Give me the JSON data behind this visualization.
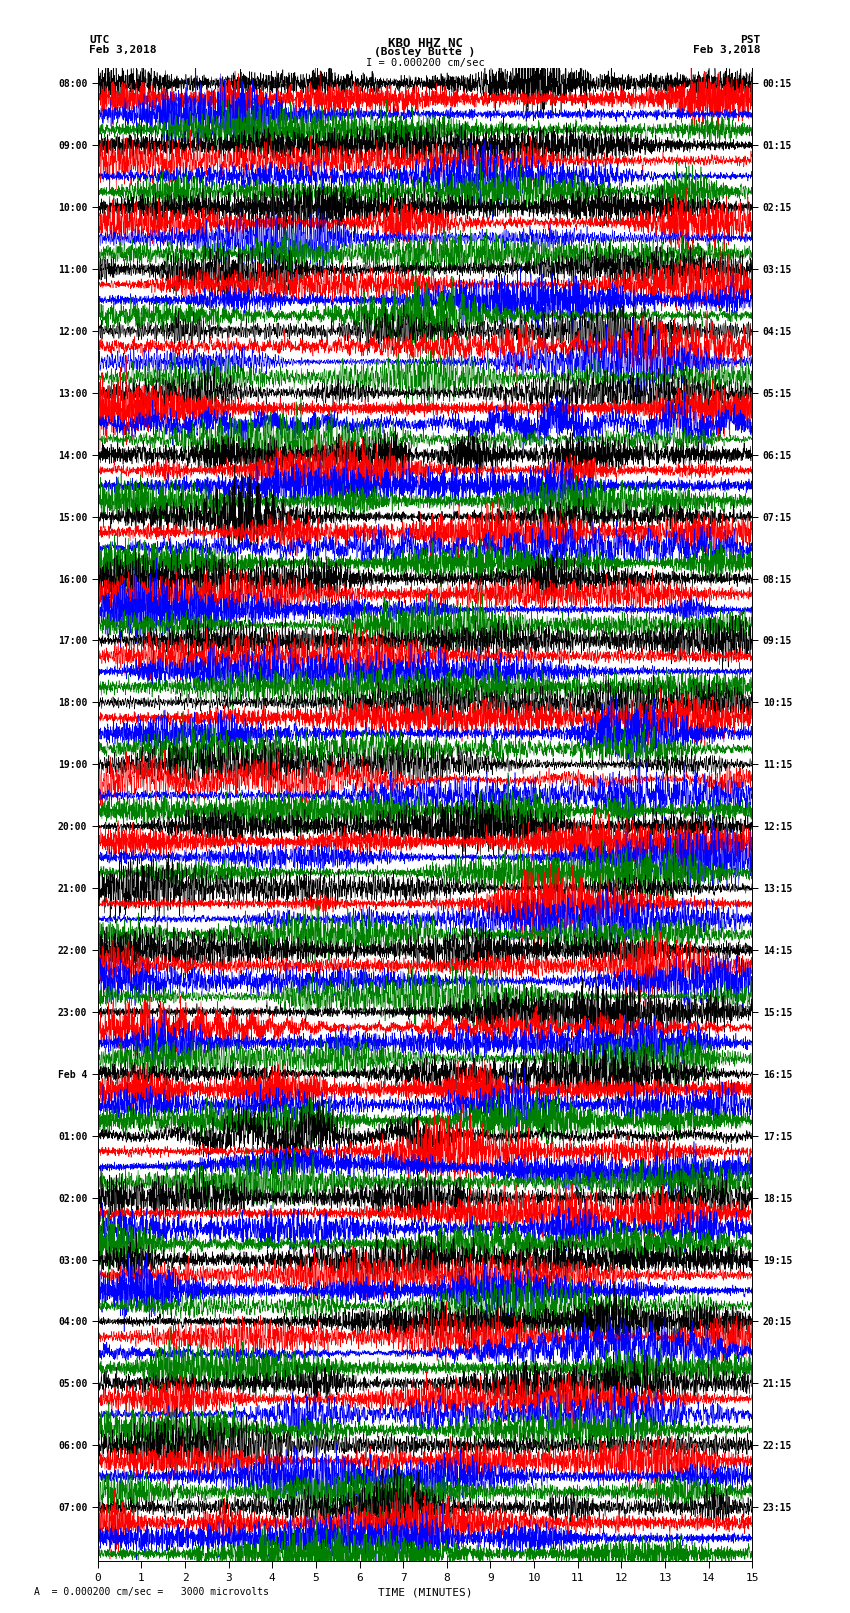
{
  "title_line1": "KBO HHZ NC",
  "title_line2": "(Bosley Butte )",
  "scale_label": "I = 0.000200 cm/sec",
  "bottom_label": "A  = 0.000200 cm/sec =   3000 microvolts",
  "left_header": "UTC",
  "left_date": "Feb 3,2018",
  "right_header": "PST",
  "right_date": "Feb 3,2018",
  "xlabel": "TIME (MINUTES)",
  "time_min": 0,
  "time_max": 15,
  "xticks": [
    0,
    1,
    2,
    3,
    4,
    5,
    6,
    7,
    8,
    9,
    10,
    11,
    12,
    13,
    14,
    15
  ],
  "left_times": [
    "08:00",
    "",
    "",
    "",
    "09:00",
    "",
    "",
    "",
    "10:00",
    "",
    "",
    "",
    "11:00",
    "",
    "",
    "",
    "12:00",
    "",
    "",
    "",
    "13:00",
    "",
    "",
    "",
    "14:00",
    "",
    "",
    "",
    "15:00",
    "",
    "",
    "",
    "16:00",
    "",
    "",
    "",
    "17:00",
    "",
    "",
    "",
    "18:00",
    "",
    "",
    "",
    "19:00",
    "",
    "",
    "",
    "20:00",
    "",
    "",
    "",
    "21:00",
    "",
    "",
    "",
    "22:00",
    "",
    "",
    "",
    "23:00",
    "",
    "",
    "",
    "Feb 4",
    "",
    "",
    "",
    "01:00",
    "",
    "",
    "",
    "02:00",
    "",
    "",
    "",
    "03:00",
    "",
    "",
    "",
    "04:00",
    "",
    "",
    "",
    "05:00",
    "",
    "",
    "",
    "06:00",
    "",
    "",
    "",
    "07:00",
    "",
    "",
    ""
  ],
  "right_times": [
    "00:15",
    "",
    "",
    "",
    "01:15",
    "",
    "",
    "",
    "02:15",
    "",
    "",
    "",
    "03:15",
    "",
    "",
    "",
    "04:15",
    "",
    "",
    "",
    "05:15",
    "",
    "",
    "",
    "06:15",
    "",
    "",
    "",
    "07:15",
    "",
    "",
    "",
    "08:15",
    "",
    "",
    "",
    "09:15",
    "",
    "",
    "",
    "10:15",
    "",
    "",
    "",
    "11:15",
    "",
    "",
    "",
    "12:15",
    "",
    "",
    "",
    "13:15",
    "",
    "",
    "",
    "14:15",
    "",
    "",
    "",
    "15:15",
    "",
    "",
    "",
    "16:15",
    "",
    "",
    "",
    "17:15",
    "",
    "",
    "",
    "18:15",
    "",
    "",
    "",
    "19:15",
    "",
    "",
    "",
    "20:15",
    "",
    "",
    "",
    "21:15",
    "",
    "",
    "",
    "22:15",
    "",
    "",
    "",
    "23:15",
    "",
    "",
    ""
  ],
  "trace_colors": [
    "black",
    "red",
    "blue",
    "green"
  ],
  "n_rows": 96,
  "bg_color": "white",
  "noise_seed": 42
}
